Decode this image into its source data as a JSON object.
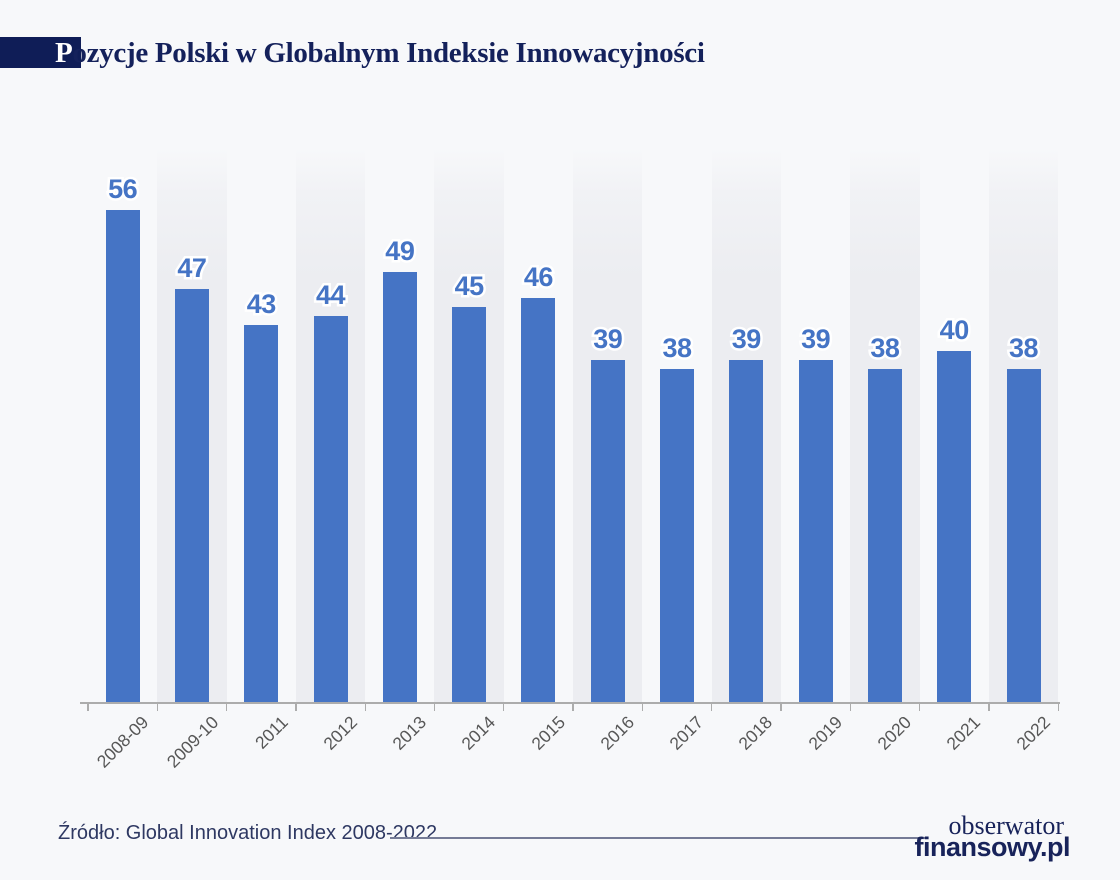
{
  "page": {
    "background": "#F7F8FA"
  },
  "header": {
    "title_initial": "P",
    "title_rest": "ozycje Polski w Globalnym Indeksie Innowacyjności"
  },
  "chart_data": {
    "type": "bar",
    "title": "Pozycje Polski w Globalnym Indeksie Innowacyjności",
    "categories": [
      "2008-09",
      "2009-10",
      "2011",
      "2012",
      "2013",
      "2014",
      "2015",
      "2016",
      "2017",
      "2018",
      "2019",
      "2020",
      "2021",
      "2022"
    ],
    "values": [
      56,
      47,
      43,
      44,
      49,
      45,
      46,
      39,
      38,
      39,
      39,
      38,
      40,
      38
    ],
    "xlabel": "",
    "ylabel": "",
    "ylim": [
      0,
      56
    ],
    "data_labels": true,
    "grid": false,
    "legend": false,
    "x_tick_rotation_deg": -45,
    "striped_background_columns": "every second category column shaded light gray"
  },
  "footer": {
    "source": "Źródło: Global Innovation Index 2008-2022",
    "logo_line1": "obserwator",
    "logo_line2": "finansowy.pl"
  },
  "colors": {
    "bar": "#4574C5",
    "background": "#F7F8FA",
    "column_stripe": "#ECEDF1",
    "title_block": "#0F1D57",
    "title_text": "#14215B",
    "axis_label": "#575757",
    "axis_line": "#ACACAC",
    "source_text": "#2E3862",
    "divider_line": "#757B96",
    "logo_text": "#18235A"
  }
}
